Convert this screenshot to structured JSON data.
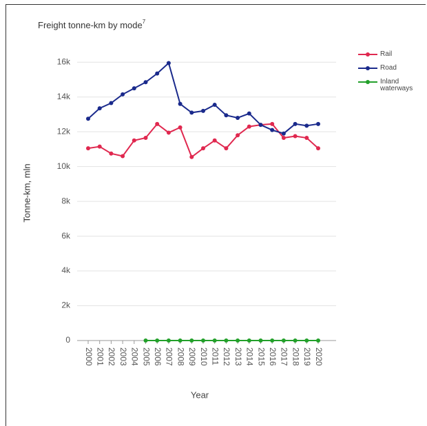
{
  "chart_data": {
    "type": "line",
    "title": "Freight tonne-km by mode",
    "title_superscript": "7",
    "x_label": "Year",
    "y_label": "Tonne-km, mln",
    "x": [
      2000,
      2001,
      2002,
      2003,
      2004,
      2005,
      2006,
      2007,
      2008,
      2009,
      2010,
      2011,
      2012,
      2013,
      2014,
      2015,
      2016,
      2017,
      2018,
      2019,
      2020
    ],
    "xlim": [
      2000,
      2020
    ],
    "xticks": [
      2000,
      2001,
      2002,
      2003,
      2004,
      2005,
      2006,
      2007,
      2008,
      2009,
      2010,
      2011,
      2012,
      2013,
      2014,
      2015,
      2016,
      2017,
      2018,
      2019,
      2020
    ],
    "ylim": [
      0,
      17000
    ],
    "yticks": [
      0,
      {
        "value": 2000,
        "label": "2k"
      },
      {
        "value": 4000,
        "label": "4k"
      },
      {
        "value": 6000,
        "label": "6k"
      },
      {
        "value": 8000,
        "label": "8k"
      },
      {
        "value": 10000,
        "label": "10k"
      },
      {
        "value": 12000,
        "label": "12k"
      },
      {
        "value": 14000,
        "label": "14k"
      },
      {
        "value": 16000,
        "label": "16k"
      }
    ],
    "grid": true,
    "legend": "right",
    "series": [
      {
        "name": "Rail",
        "color": "#e0284f",
        "values": [
          11050,
          11150,
          10750,
          10600,
          11500,
          11650,
          12450,
          11950,
          12250,
          10550,
          11050,
          11500,
          11050,
          11800,
          12300,
          12400,
          12450,
          11650,
          11750,
          11650,
          11050
        ]
      },
      {
        "name": "Road",
        "color": "#1a2a8c",
        "values": [
          12750,
          13350,
          13650,
          14150,
          14500,
          14850,
          15350,
          15950,
          13600,
          13100,
          13200,
          13550,
          12950,
          12800,
          13050,
          12400,
          12100,
          11900,
          12450,
          12350,
          12450
        ]
      },
      {
        "name": "Inland waterways",
        "color": "#22a02a",
        "values": [
          null,
          null,
          null,
          null,
          null,
          0,
          0,
          0,
          0,
          0,
          0,
          0,
          0,
          0,
          0,
          0,
          0,
          0,
          0,
          0,
          0
        ]
      }
    ]
  }
}
